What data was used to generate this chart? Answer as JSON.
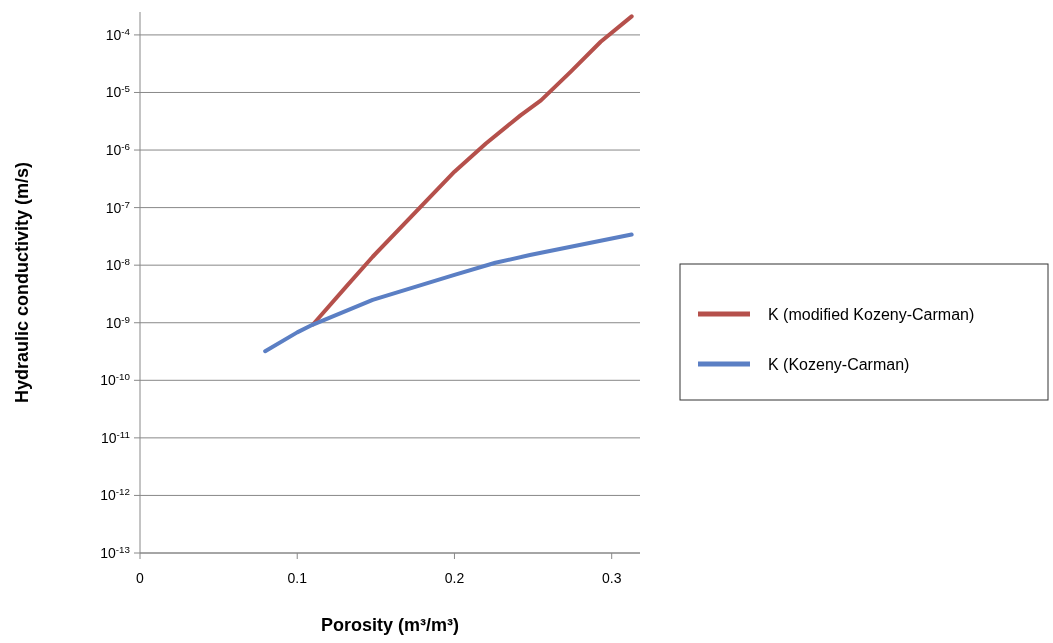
{
  "chart_data": {
    "type": "line",
    "xlabel": "Porosity (m³/m³)",
    "ylabel": "Hydraulic conductivity (m/s)",
    "log": "y",
    "grid": "y",
    "legend": "right",
    "line_style": "solid",
    "xlim": [
      0,
      0.318
    ],
    "xticks": [
      0,
      0.1,
      0.2,
      0.3
    ],
    "ylim": [
      1e-13,
      0.00025
    ],
    "yticks": [
      {
        "value": 1e-13,
        "label": "10$^{-13}$"
      },
      {
        "value": 1e-12,
        "label": "10$^{-12}$"
      },
      {
        "value": 1e-11,
        "label": "10$^{-11}$"
      },
      {
        "value": 1e-10,
        "label": "10$^{-10}$"
      },
      {
        "value": 1e-09,
        "label": "10$^{-9}$"
      },
      {
        "value": 1e-08,
        "label": "10$^{-8}$"
      },
      {
        "value": 1e-07,
        "label": "10$^{-7}$"
      },
      {
        "value": 1e-06,
        "label": "10$^{-6}$"
      },
      {
        "value": 1e-05,
        "label": "10$^{-5}$"
      },
      {
        "value": 0.0001,
        "label": "10$^{-4}$"
      }
    ],
    "series": [
      {
        "name": "K (modified Kozeny-Carman)",
        "color": "#b5504b",
        "x": [
          0.11,
          0.131,
          0.148,
          0.2,
          0.22,
          0.242,
          0.255,
          0.274,
          0.293,
          0.3127
        ],
        "values": [
          9.3e-10,
          4.2e-09,
          1.4e-08,
          4.2e-07,
          1.3e-06,
          4e-06,
          7.3e-06,
          2.3e-05,
          7.6e-05,
          0.00021
        ]
      },
      {
        "name": "K (Kozeny-Carman)",
        "color": "#5b7fc4",
        "x": [
          0.0796,
          0.1,
          0.11,
          0.148,
          0.2,
          0.226,
          0.248,
          0.3127
        ],
        "values": [
          3.2e-10,
          6.8e-10,
          9.3e-10,
          2.5e-09,
          6.8e-09,
          1.1e-08,
          1.5e-08,
          3.4e-08
        ]
      }
    ]
  }
}
